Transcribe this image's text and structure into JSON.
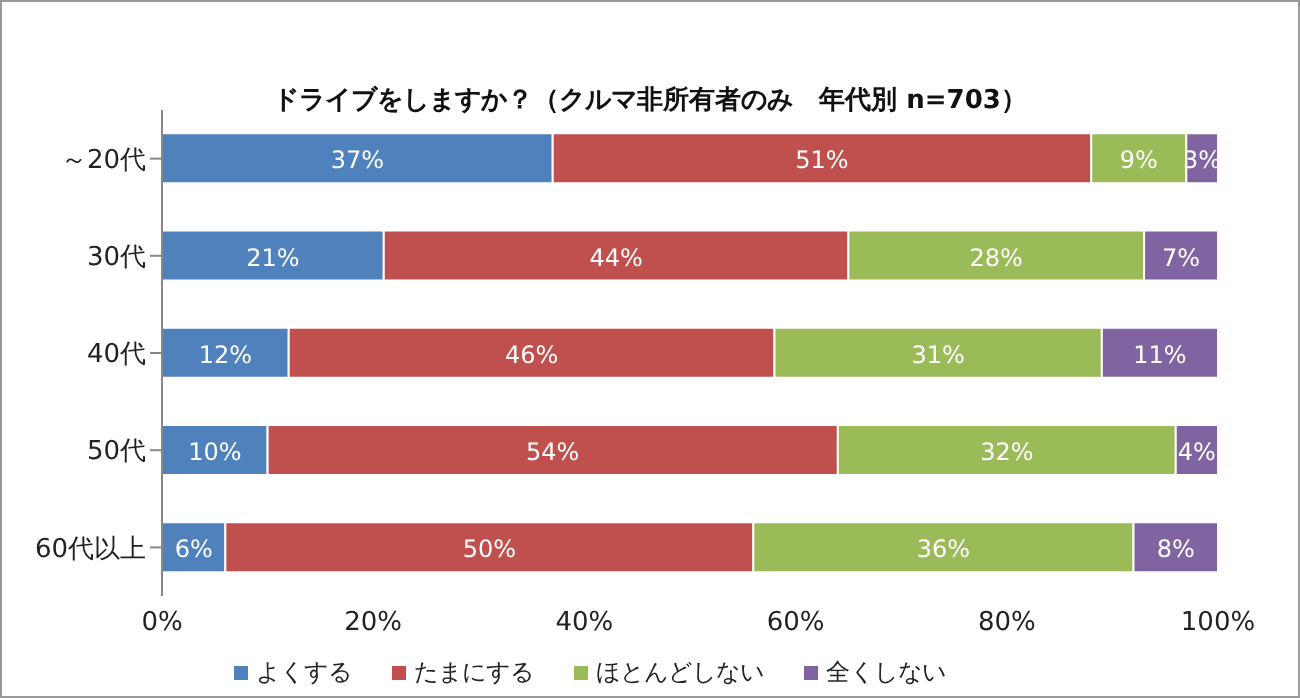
{
  "chart_data": {
    "type": "bar",
    "orientation": "horizontal",
    "stacked": true,
    "title": "ドライブをしますか？（クルマ非所有者のみ　年代別 n=703）",
    "categories": [
      "～20代",
      "30代",
      "40代",
      "50代",
      "60代以上"
    ],
    "series": [
      {
        "name": "よくする",
        "color": "#4f81bd",
        "values": [
          37,
          21,
          12,
          10,
          6
        ],
        "value_labels": [
          "37%",
          "21%",
          "12%",
          "10%",
          "6%"
        ]
      },
      {
        "name": "たまにする",
        "color": "#c0504d",
        "values": [
          51,
          44,
          46,
          54,
          50
        ],
        "value_labels": [
          "51%",
          "44%",
          "46%",
          "54%",
          "50%"
        ]
      },
      {
        "name": "ほとんどしない",
        "color": "#9bbb59",
        "values": [
          9,
          28,
          31,
          32,
          36
        ],
        "value_labels": [
          "9%",
          "28%",
          "31%",
          "32%",
          "36%"
        ]
      },
      {
        "name": "全くしない",
        "color": "#8064a2",
        "values": [
          3,
          7,
          11,
          4,
          8
        ],
        "value_labels": [
          "3%",
          "7%",
          "11%",
          "4%",
          "8%"
        ]
      }
    ],
    "xlim": [
      0,
      100
    ],
    "xticks": [
      {
        "value": 0,
        "label": "0%"
      },
      {
        "value": 20,
        "label": "20%"
      },
      {
        "value": 40,
        "label": "40%"
      },
      {
        "value": 60,
        "label": "60%"
      },
      {
        "value": 80,
        "label": "80%"
      },
      {
        "value": 100,
        "label": "100%"
      }
    ],
    "grid": false,
    "legend": "bottom"
  }
}
